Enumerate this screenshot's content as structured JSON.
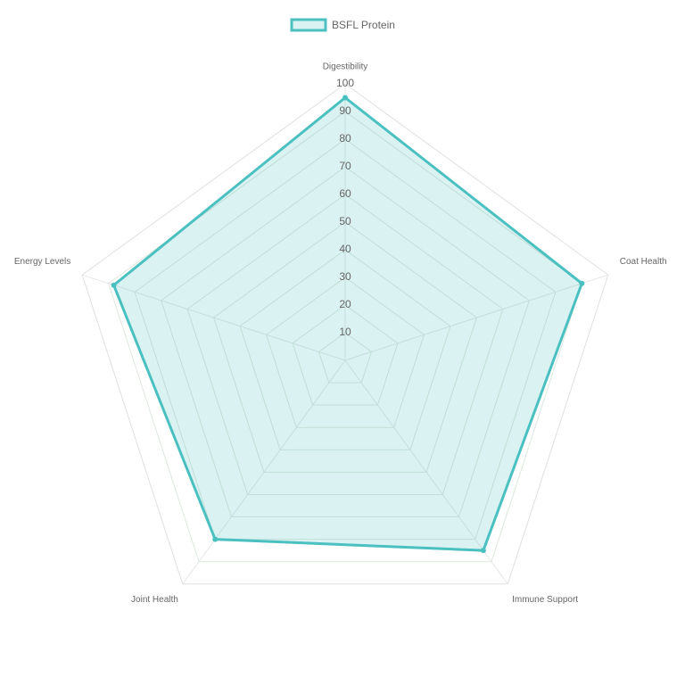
{
  "chart_data": {
    "type": "radar",
    "categories": [
      "Digestibility",
      "Coat Health",
      "Immune Support",
      "Joint Health",
      "Energy Levels"
    ],
    "series": [
      {
        "name": "BSFL Protein",
        "color": "#4bc0c0",
        "values": [
          95,
          90,
          85,
          80,
          88
        ]
      }
    ],
    "rlim": [
      0,
      100
    ],
    "rticks": [
      10,
      20,
      30,
      40,
      50,
      60,
      70,
      80,
      90,
      100
    ],
    "grid": true,
    "legend": "top"
  }
}
